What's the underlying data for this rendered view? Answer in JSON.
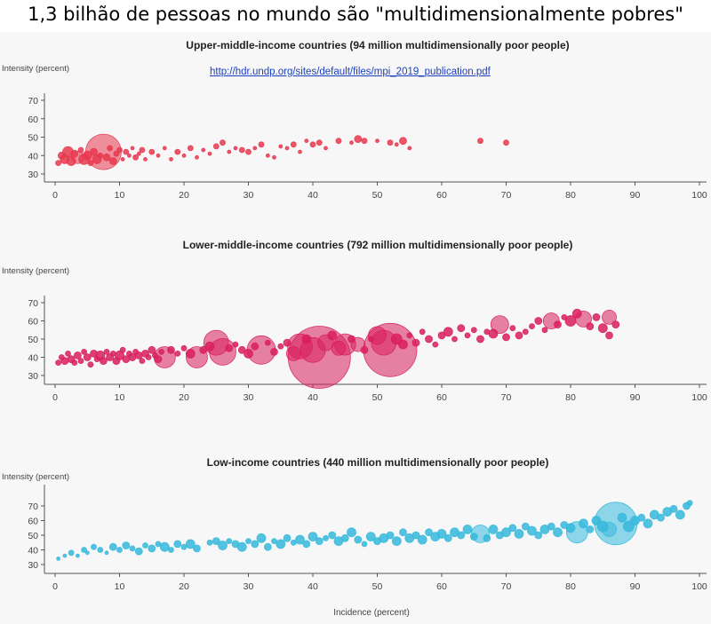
{
  "title": "1,3 bilhão de pessoas no mundo são \"multidimensionalmente pobres\"",
  "source_link": "http://hdr.undp.org/sites/default/files/mpi_2019_publication.pdf",
  "colors": {
    "upper": "#e8384f",
    "lower": "#d81f5e",
    "low": "#36b9dc"
  },
  "chart_data": [
    {
      "type": "scatter",
      "title": "Upper-middle-income countries (94 million multidimensionally poor people)",
      "ylabel": "Intensity (percent)",
      "xlim": [
        0,
        100
      ],
      "ylim": [
        25,
        75
      ],
      "x_ticks": [
        0,
        10,
        20,
        30,
        40,
        50,
        60,
        70,
        80,
        90,
        100
      ],
      "y_ticks": [
        30,
        40,
        50,
        60,
        70
      ],
      "points": [
        [
          0.5,
          36,
          3
        ],
        [
          1,
          40,
          4
        ],
        [
          1.5,
          38,
          5
        ],
        [
          2,
          42,
          6
        ],
        [
          2.5,
          37,
          5
        ],
        [
          3,
          41,
          4
        ],
        [
          3.5,
          39,
          7
        ],
        [
          4,
          43,
          3
        ],
        [
          4.5,
          38,
          6
        ],
        [
          5,
          40,
          5
        ],
        [
          5.5,
          36,
          3
        ],
        [
          6,
          42,
          4
        ],
        [
          6.5,
          38,
          5
        ],
        [
          7,
          40,
          3
        ],
        [
          7.5,
          42,
          20
        ],
        [
          8,
          39,
          4
        ],
        [
          8.5,
          44,
          3
        ],
        [
          9,
          37,
          4
        ],
        [
          9.5,
          41,
          3
        ],
        [
          10,
          43,
          3
        ],
        [
          10.5,
          38,
          2
        ],
        [
          11,
          42,
          3
        ],
        [
          11.5,
          40,
          2
        ],
        [
          12,
          44,
          2
        ],
        [
          12.5,
          39,
          3
        ],
        [
          13,
          41,
          2
        ],
        [
          13.5,
          43,
          3
        ],
        [
          14,
          38,
          2
        ],
        [
          15,
          42,
          3
        ],
        [
          16,
          40,
          2
        ],
        [
          17,
          44,
          2
        ],
        [
          18,
          38,
          2
        ],
        [
          19,
          42,
          3
        ],
        [
          20,
          40,
          2
        ],
        [
          21,
          44,
          3
        ],
        [
          22,
          39,
          2
        ],
        [
          23,
          43,
          2
        ],
        [
          24,
          41,
          2
        ],
        [
          25,
          45,
          3
        ],
        [
          26,
          47,
          3
        ],
        [
          27,
          42,
          2
        ],
        [
          28,
          44,
          2
        ],
        [
          29,
          43,
          3
        ],
        [
          30,
          42,
          3
        ],
        [
          31,
          44,
          2
        ],
        [
          32,
          46,
          3
        ],
        [
          33,
          40,
          2
        ],
        [
          34,
          39,
          2
        ],
        [
          35,
          45,
          2
        ],
        [
          36,
          44,
          2
        ],
        [
          37,
          46,
          3
        ],
        [
          38,
          42,
          2
        ],
        [
          39,
          48,
          2
        ],
        [
          40,
          46,
          3
        ],
        [
          41,
          47,
          3
        ],
        [
          42,
          44,
          2
        ],
        [
          44,
          48,
          3
        ],
        [
          46,
          47,
          2
        ],
        [
          47,
          49,
          4
        ],
        [
          48,
          48,
          3
        ],
        [
          50,
          48,
          2
        ],
        [
          52,
          47,
          3
        ],
        [
          53,
          46,
          2
        ],
        [
          54,
          48,
          4
        ],
        [
          55,
          44,
          2
        ],
        [
          66,
          48,
          3
        ],
        [
          70,
          47,
          3
        ]
      ]
    },
    {
      "type": "scatter",
      "title": "Lower-middle-income countries (792 million multidimensionally poor people)",
      "ylabel": "Intensity (percent)",
      "xlim": [
        0,
        100
      ],
      "ylim": [
        25,
        75
      ],
      "x_ticks": [
        0,
        10,
        20,
        30,
        40,
        50,
        60,
        70,
        80,
        90,
        100
      ],
      "y_ticks": [
        30,
        40,
        50,
        60,
        70
      ],
      "points": [
        [
          0.5,
          37,
          3
        ],
        [
          1,
          40,
          3
        ],
        [
          1.5,
          38,
          4
        ],
        [
          2,
          42,
          3
        ],
        [
          2.5,
          39,
          4
        ],
        [
          3,
          37,
          3
        ],
        [
          3.5,
          41,
          4
        ],
        [
          4,
          38,
          3
        ],
        [
          4.5,
          43,
          3
        ],
        [
          5,
          40,
          4
        ],
        [
          5.5,
          36,
          3
        ],
        [
          6,
          42,
          4
        ],
        [
          6.5,
          39,
          3
        ],
        [
          7,
          41,
          5
        ],
        [
          7.5,
          38,
          4
        ],
        [
          8,
          43,
          3
        ],
        [
          8.5,
          40,
          4
        ],
        [
          9,
          42,
          3
        ],
        [
          9.5,
          38,
          4
        ],
        [
          10,
          41,
          5
        ],
        [
          10.5,
          44,
          3
        ],
        [
          11,
          39,
          4
        ],
        [
          11.5,
          42,
          3
        ],
        [
          12,
          40,
          4
        ],
        [
          12.5,
          43,
          3
        ],
        [
          13,
          41,
          4
        ],
        [
          13.5,
          38,
          3
        ],
        [
          14,
          42,
          4
        ],
        [
          14.5,
          40,
          3
        ],
        [
          15,
          44,
          4
        ],
        [
          15.5,
          41,
          3
        ],
        [
          16,
          39,
          4
        ],
        [
          16.5,
          43,
          3
        ],
        [
          17,
          40,
          12
        ],
        [
          18,
          44,
          4
        ],
        [
          19,
          42,
          3
        ],
        [
          20,
          45,
          3
        ],
        [
          21,
          42,
          5
        ],
        [
          22,
          40,
          12
        ],
        [
          23,
          44,
          4
        ],
        [
          24,
          46,
          5
        ],
        [
          25,
          48,
          14
        ],
        [
          26,
          43,
          15
        ],
        [
          27,
          45,
          4
        ],
        [
          28,
          47,
          3
        ],
        [
          29,
          44,
          4
        ],
        [
          30,
          42,
          5
        ],
        [
          31,
          46,
          4
        ],
        [
          32,
          44,
          16
        ],
        [
          33,
          48,
          3
        ],
        [
          34,
          43,
          4
        ],
        [
          35,
          46,
          3
        ],
        [
          36,
          48,
          4
        ],
        [
          37,
          42,
          8
        ],
        [
          38,
          46,
          14
        ],
        [
          39,
          50,
          5
        ],
        [
          40,
          44,
          14
        ],
        [
          41,
          40,
          35
        ],
        [
          42,
          48,
          9
        ],
        [
          43,
          52,
          5
        ],
        [
          44,
          45,
          8
        ],
        [
          45,
          47,
          12
        ],
        [
          46,
          50,
          4
        ],
        [
          47,
          47,
          8
        ],
        [
          48,
          44,
          4
        ],
        [
          49,
          50,
          3
        ],
        [
          50,
          52,
          10
        ],
        [
          51,
          48,
          14
        ],
        [
          52,
          44,
          30
        ],
        [
          53,
          50,
          6
        ],
        [
          54,
          47,
          5
        ],
        [
          55,
          52,
          3
        ],
        [
          56,
          48,
          4
        ],
        [
          57,
          54,
          3
        ],
        [
          58,
          50,
          4
        ],
        [
          59,
          47,
          3
        ],
        [
          60,
          52,
          4
        ],
        [
          61,
          54,
          5
        ],
        [
          62,
          50,
          3
        ],
        [
          63,
          56,
          4
        ],
        [
          64,
          52,
          3
        ],
        [
          65,
          55,
          3
        ],
        [
          66,
          50,
          4
        ],
        [
          67,
          54,
          3
        ],
        [
          68,
          53,
          5
        ],
        [
          69,
          58,
          10
        ],
        [
          70,
          51,
          4
        ],
        [
          71,
          56,
          3
        ],
        [
          72,
          52,
          4
        ],
        [
          73,
          54,
          3
        ],
        [
          74,
          57,
          3
        ],
        [
          75,
          60,
          4
        ],
        [
          76,
          55,
          3
        ],
        [
          77,
          60,
          9
        ],
        [
          78,
          58,
          4
        ],
        [
          79,
          62,
          3
        ],
        [
          80,
          60,
          6
        ],
        [
          81,
          64,
          5
        ],
        [
          82,
          61,
          9
        ],
        [
          83,
          57,
          4
        ],
        [
          84,
          62,
          4
        ],
        [
          85,
          56,
          5
        ],
        [
          86,
          62,
          8
        ],
        [
          87,
          58,
          4
        ],
        [
          86,
          52,
          4
        ]
      ]
    },
    {
      "type": "scatter",
      "title": "Low-income countries (440 million multidimensionally poor people)",
      "ylabel": "Intensity (percent)",
      "xlabel": "Incidence (percent)",
      "xlim": [
        0,
        100
      ],
      "ylim": [
        25,
        75
      ],
      "x_ticks": [
        0,
        10,
        20,
        30,
        40,
        50,
        60,
        70,
        80,
        90,
        100
      ],
      "y_ticks": [
        30,
        40,
        50,
        60,
        70
      ],
      "points": [
        [
          0.5,
          34,
          2
        ],
        [
          1.5,
          36,
          2
        ],
        [
          2.5,
          38,
          3
        ],
        [
          3.5,
          36,
          2
        ],
        [
          4.5,
          40,
          3
        ],
        [
          5,
          38,
          2
        ],
        [
          6,
          42,
          3
        ],
        [
          7,
          40,
          3
        ],
        [
          8,
          38,
          2
        ],
        [
          9,
          42,
          4
        ],
        [
          10,
          40,
          3
        ],
        [
          11,
          43,
          4
        ],
        [
          12,
          41,
          3
        ],
        [
          13,
          39,
          4
        ],
        [
          14,
          43,
          3
        ],
        [
          15,
          41,
          4
        ],
        [
          16,
          44,
          3
        ],
        [
          17,
          42,
          5
        ],
        [
          18,
          40,
          3
        ],
        [
          19,
          44,
          4
        ],
        [
          20,
          42,
          3
        ],
        [
          21,
          44,
          5
        ],
        [
          22,
          41,
          4
        ],
        [
          24,
          45,
          3
        ],
        [
          25,
          46,
          4
        ],
        [
          26,
          43,
          5
        ],
        [
          27,
          46,
          3
        ],
        [
          28,
          44,
          4
        ],
        [
          29,
          42,
          5
        ],
        [
          30,
          46,
          3
        ],
        [
          31,
          44,
          4
        ],
        [
          32,
          48,
          5
        ],
        [
          33,
          42,
          4
        ],
        [
          34,
          46,
          3
        ],
        [
          35,
          44,
          5
        ],
        [
          36,
          48,
          4
        ],
        [
          37,
          45,
          3
        ],
        [
          38,
          47,
          5
        ],
        [
          39,
          44,
          4
        ],
        [
          40,
          49,
          5
        ],
        [
          41,
          46,
          4
        ],
        [
          42,
          48,
          3
        ],
        [
          43,
          50,
          4
        ],
        [
          44,
          46,
          5
        ],
        [
          45,
          48,
          4
        ],
        [
          46,
          52,
          5
        ],
        [
          47,
          47,
          4
        ],
        [
          48,
          44,
          3
        ],
        [
          49,
          49,
          5
        ],
        [
          50,
          46,
          4
        ],
        [
          51,
          48,
          5
        ],
        [
          52,
          50,
          4
        ],
        [
          53,
          46,
          5
        ],
        [
          54,
          52,
          4
        ],
        [
          55,
          48,
          5
        ],
        [
          56,
          50,
          4
        ],
        [
          57,
          47,
          5
        ],
        [
          58,
          52,
          4
        ],
        [
          59,
          49,
          5
        ],
        [
          60,
          51,
          5
        ],
        [
          61,
          48,
          4
        ],
        [
          62,
          52,
          5
        ],
        [
          63,
          50,
          4
        ],
        [
          64,
          54,
          5
        ],
        [
          65,
          49,
          4
        ],
        [
          66,
          51,
          10
        ],
        [
          67,
          48,
          4
        ],
        [
          68,
          54,
          5
        ],
        [
          69,
          50,
          4
        ],
        [
          70,
          52,
          5
        ],
        [
          71,
          55,
          4
        ],
        [
          72,
          51,
          5
        ],
        [
          73,
          56,
          4
        ],
        [
          74,
          53,
          5
        ],
        [
          75,
          50,
          4
        ],
        [
          76,
          54,
          5
        ],
        [
          77,
          56,
          4
        ],
        [
          78,
          52,
          5
        ],
        [
          79,
          57,
          4
        ],
        [
          80,
          55,
          5
        ],
        [
          81,
          52,
          12
        ],
        [
          82,
          58,
          5
        ],
        [
          83,
          54,
          4
        ],
        [
          84,
          60,
          5
        ],
        [
          85,
          56,
          6
        ],
        [
          86,
          54,
          8
        ],
        [
          87,
          58,
          24
        ],
        [
          88,
          62,
          5
        ],
        [
          89,
          56,
          6
        ],
        [
          90,
          60,
          5
        ],
        [
          91,
          62,
          4
        ],
        [
          92,
          58,
          5
        ],
        [
          93,
          64,
          5
        ],
        [
          94,
          62,
          4
        ],
        [
          95,
          66,
          5
        ],
        [
          96,
          68,
          4
        ],
        [
          97,
          64,
          5
        ],
        [
          98,
          70,
          4
        ],
        [
          98.5,
          72,
          3
        ]
      ]
    }
  ]
}
